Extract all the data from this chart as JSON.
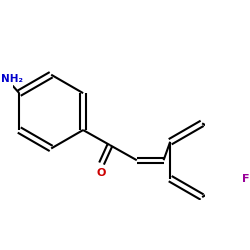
{
  "background_color": "#ffffff",
  "bond_color": "#000000",
  "nh2_color": "#0000cc",
  "o_color": "#cc0000",
  "f_color": "#990099",
  "lw": 1.5,
  "dbo": 0.018,
  "r": 0.22,
  "fig_width": 2.5,
  "fig_height": 2.5,
  "dpi": 100,
  "xlim": [
    0.0,
    1.15
  ],
  "ylim": [
    0.15,
    1.05
  ]
}
